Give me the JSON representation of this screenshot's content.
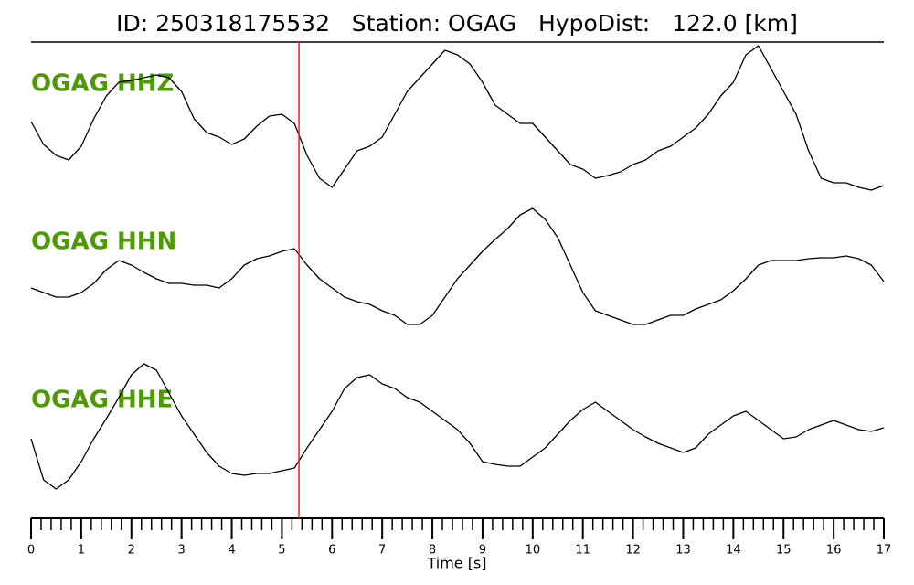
{
  "chart_data": {
    "type": "seismogram",
    "title": "ID: 250318175532   Station: OGAG   HypoDist:   122.0 [km]",
    "xlabel": "Time [s]",
    "xlim": [
      0,
      17
    ],
    "xticks": [
      0,
      1,
      2,
      3,
      4,
      5,
      6,
      7,
      8,
      9,
      10,
      11,
      12,
      13,
      14,
      15,
      16,
      17
    ],
    "xminorticks": [
      0.2,
      0.4,
      0.6,
      0.8,
      1.2,
      1.4,
      1.6,
      1.8,
      2.2,
      2.4,
      2.6,
      2.8,
      3.2,
      3.4,
      3.6,
      3.8,
      4.2,
      4.4,
      4.6,
      4.8,
      5.2,
      5.4,
      5.6,
      5.8,
      6.2,
      6.4,
      6.6,
      6.8,
      7.2,
      7.4,
      7.6,
      7.8,
      8.2,
      8.4,
      8.6,
      8.8,
      9.2,
      9.4,
      9.6,
      9.8,
      10.2,
      10.4,
      10.6,
      10.8,
      11.2,
      11.4,
      11.6,
      11.8,
      12.2,
      12.4,
      12.6,
      12.8,
      13.2,
      13.4,
      13.6,
      13.8,
      14.2,
      14.4,
      14.6,
      14.8,
      15.2,
      15.4,
      15.6,
      15.8,
      16.2,
      16.4,
      16.6,
      16.8
    ],
    "vline": 5.34,
    "vline_color": "#e8231e",
    "label_color": "#4e9a06",
    "ylim": [
      -100,
      100
    ],
    "x": [
      0,
      0.25,
      0.5,
      0.75,
      1,
      1.25,
      1.5,
      1.75,
      2,
      2.25,
      2.5,
      2.75,
      3,
      3.25,
      3.5,
      3.75,
      4,
      4.25,
      4.5,
      4.75,
      5,
      5.25,
      5.5,
      5.75,
      6,
      6.25,
      6.5,
      6.75,
      7,
      7.25,
      7.5,
      7.75,
      8,
      8.25,
      8.5,
      8.75,
      9,
      9.25,
      9.5,
      9.75,
      10,
      10.25,
      10.5,
      10.75,
      11,
      11.25,
      11.5,
      11.75,
      12,
      12.25,
      12.5,
      12.75,
      13,
      13.25,
      13.5,
      13.75,
      14,
      14.25,
      14.5,
      14.75,
      15,
      15.25,
      15.5,
      15.75,
      16,
      16.25,
      16.5,
      16.75,
      17
    ],
    "series": [
      {
        "name": "OGAG HHZ",
        "color": "#000000",
        "values": [
          -3,
          -28,
          -40,
          -45,
          -30,
          0,
          25,
          40,
          42,
          45,
          48,
          45,
          30,
          0,
          -15,
          -20,
          -28,
          -22,
          -8,
          3,
          5,
          -5,
          -40,
          -65,
          -75,
          -55,
          -35,
          -30,
          -20,
          5,
          30,
          45,
          60,
          75,
          70,
          60,
          40,
          15,
          5,
          -5,
          -5,
          -20,
          -35,
          -50,
          -55,
          -65,
          -62,
          -58,
          -50,
          -45,
          -35,
          -30,
          -20,
          -10,
          5,
          25,
          40,
          70,
          80,
          55,
          30,
          5,
          -35,
          -65,
          -70,
          -70,
          -75,
          -78,
          -73
        ]
      },
      {
        "name": "OGAG HHN",
        "color": "#000000",
        "values": [
          -15,
          -20,
          -25,
          -25,
          -20,
          -10,
          5,
          15,
          10,
          2,
          -5,
          -10,
          -10,
          -12,
          -12,
          -15,
          -5,
          10,
          17,
          20,
          25,
          28,
          10,
          -5,
          -15,
          -25,
          -30,
          -33,
          -40,
          -45,
          -55,
          -55,
          -45,
          -25,
          -5,
          10,
          25,
          38,
          50,
          65,
          72,
          60,
          40,
          10,
          -20,
          -40,
          -45,
          -50,
          -55,
          -55,
          -50,
          -45,
          -45,
          -38,
          -33,
          -28,
          -18,
          -5,
          10,
          15,
          15,
          15,
          17,
          18,
          18,
          20,
          17,
          10,
          -8
        ]
      },
      {
        "name": "OGAG HHE",
        "color": "#000000",
        "values": [
          -15,
          -60,
          -70,
          -60,
          -40,
          -15,
          7,
          30,
          55,
          67,
          60,
          35,
          10,
          -10,
          -30,
          -45,
          -53,
          -55,
          -53,
          -53,
          -50,
          -47,
          -25,
          -5,
          15,
          40,
          52,
          55,
          45,
          40,
          30,
          25,
          15,
          5,
          -5,
          -20,
          -40,
          -43,
          -45,
          -45,
          -35,
          -25,
          -10,
          5,
          17,
          25,
          15,
          5,
          -5,
          -13,
          -20,
          -25,
          -30,
          -25,
          -10,
          0,
          10,
          15,
          5,
          -5,
          -15,
          -13,
          -5,
          0,
          5,
          0,
          -5,
          -7,
          -3
        ]
      }
    ]
  }
}
